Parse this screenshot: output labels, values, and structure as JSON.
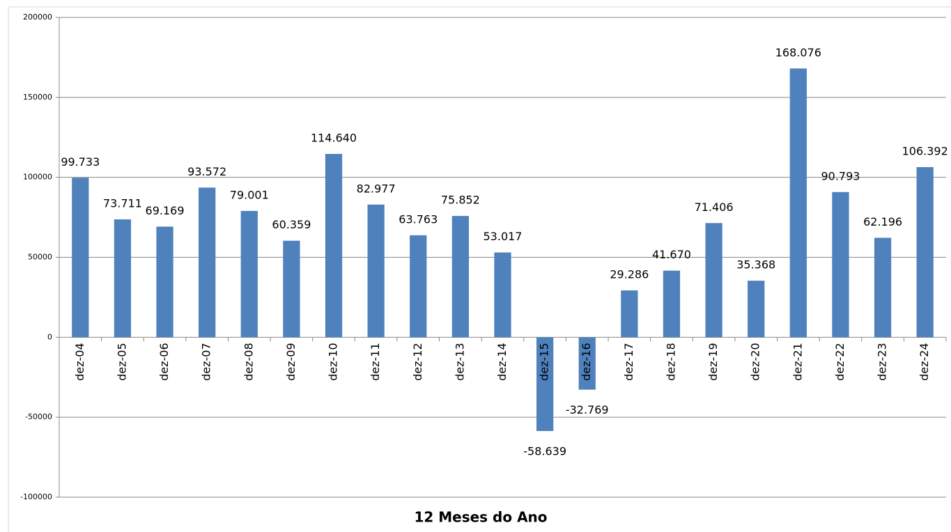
{
  "chart_data": {
    "type": "bar",
    "x_label": "12 Meses do Ano",
    "categories": [
      "dez-04",
      "dez-05",
      "dez-06",
      "dez-07",
      "dez-08",
      "dez-09",
      "dez-10",
      "dez-11",
      "dez-12",
      "dez-13",
      "dez-14",
      "dez-15",
      "dez-16",
      "dez-17",
      "dez-18",
      "dez-19",
      "dez-20",
      "dez-21",
      "dez-22",
      "dez-23",
      "dez-24"
    ],
    "values": [
      99733,
      73711,
      69169,
      93572,
      79001,
      60359,
      114640,
      82977,
      63763,
      75852,
      53017,
      -58639,
      -32769,
      29286,
      41670,
      71406,
      35368,
      168076,
      90793,
      62196,
      106392
    ],
    "value_labels": [
      "99.733",
      "73.711",
      "69.169",
      "93.572",
      "79.001",
      "60.359",
      "114.640",
      "82.977",
      "63.763",
      "75.852",
      "53.017",
      "-58.639",
      "-32.769",
      "29.286",
      "41.670",
      "71.406",
      "35.368",
      "168.076",
      "90.793",
      "62.196",
      "106.392"
    ],
    "color": "#4f81bd",
    "ylim": [
      -100000,
      200000
    ],
    "yticks": [
      -100000,
      -50000,
      0,
      50000,
      100000,
      150000,
      200000
    ],
    "grid": true
  }
}
